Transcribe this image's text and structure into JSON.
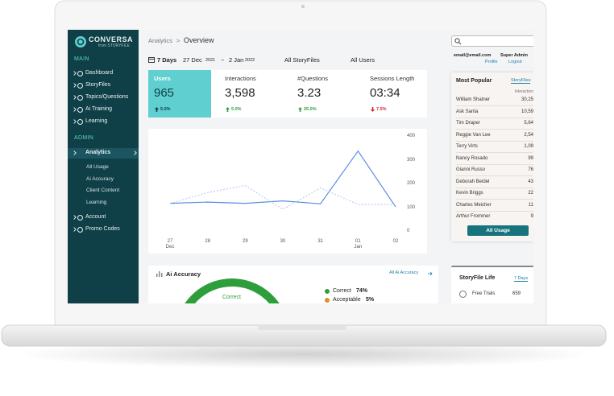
{
  "sidebar": {
    "brand": "CONVERSA",
    "brand_sub": "from STORYFILE",
    "main_label": "MAIN",
    "main_items": [
      "Dashboard",
      "StoryFiles",
      "Topics/Questions",
      "Ai Training",
      "Learning"
    ],
    "admin_label": "ADMIN",
    "active_item": "Analytics",
    "analytics_items": [
      "All Usage",
      "Ai Accuracy",
      "Client Content",
      "Learning"
    ],
    "other_items": [
      "Account",
      "Promo Codes"
    ]
  },
  "header": {
    "breadcrumb_parent": "Analytics",
    "breadcrumb_separator": ">",
    "breadcrumb_current": "Overview",
    "email": "email@email.com",
    "role": "Super Admin",
    "profile": "Profile",
    "logout": "Logout"
  },
  "filters": {
    "period": "7 Days",
    "start_date": "27 Dec",
    "start_year": "2021",
    "separator": "~",
    "end_date": "2 Jan",
    "end_year": "2022",
    "storyfiles": "All StoryFiles",
    "users": "All Users"
  },
  "stats": [
    {
      "label": "Users",
      "value": "965",
      "change": "5.0%",
      "direction": "up"
    },
    {
      "label": "Interactions",
      "value": "3,598",
      "change": "5.0%",
      "direction": "up"
    },
    {
      "label": "#Questions",
      "value": "3.23",
      "change": "25.0%",
      "direction": "up"
    },
    {
      "label": "Sessions Length",
      "value": "03:34",
      "change": "7.5%",
      "direction": "down"
    }
  ],
  "chart": {
    "type": "line",
    "categories": [
      "27\nDec",
      "28",
      "29",
      "30",
      "31",
      "01\nJan",
      "02"
    ],
    "ylim": [
      0,
      400
    ],
    "yticks": [
      0,
      100,
      200,
      300,
      400
    ],
    "series": [
      {
        "color": "#5b8fe0",
        "style": "solid",
        "values": [
          120,
          125,
          120,
          130,
          118,
          340,
          105
        ]
      },
      {
        "color": "#9bbcf0",
        "style": "dashed",
        "values": [
          120,
          165,
          195,
          95,
          185,
          115,
          115
        ]
      }
    ]
  },
  "most_popular": {
    "title": "Most Popular",
    "tab": "StoryFiles",
    "column": "Interaction",
    "rows": [
      [
        "William Shatner",
        "30,25"
      ],
      [
        "Ask Santa",
        "10,59"
      ],
      [
        "Tim Draper",
        "5,64"
      ],
      [
        "Reggie Van Lee",
        "2,54"
      ],
      [
        "Terry Virts",
        "1,09"
      ],
      [
        "Nancy Rosado",
        "99"
      ],
      [
        "Gianni Russo",
        "76"
      ],
      [
        "Deborah Beidel",
        "43"
      ],
      [
        "Kevin Briggs",
        "22"
      ],
      [
        "Charles Meicher",
        "11"
      ],
      [
        "Arthur Frommer",
        "9"
      ]
    ],
    "button": "All Usage"
  },
  "ai_accuracy": {
    "title": "Ai Accuracy",
    "link": "All Ai Accuracy",
    "center_label": "Correct",
    "legend": [
      {
        "name": "Correct",
        "value": 74,
        "label": "74%",
        "color": "#2e9e3a"
      },
      {
        "name": "Acceptable",
        "value": 5,
        "label": "5%",
        "color": "#e0901e"
      }
    ]
  },
  "storyfile_life": {
    "title": "StoryFile Life",
    "period": "7 Days",
    "rows": [
      [
        "Free Trials",
        "659"
      ]
    ]
  }
}
